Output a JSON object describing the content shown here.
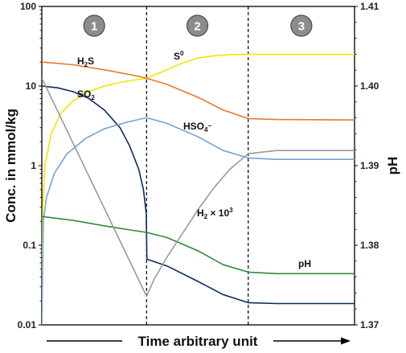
{
  "chart_data": {
    "type": "line",
    "xlabel": "Time arbitrary unit",
    "ylabel": "Conc. in mmol/kg",
    "y2label": "pH",
    "x_range": [
      0,
      1
    ],
    "y_scale": "log",
    "ylim": [
      0.01,
      100
    ],
    "y_ticks": [
      "0.01",
      "0.1",
      "1",
      "10",
      "100"
    ],
    "y2lim": [
      1.37,
      1.41
    ],
    "y2_ticks": [
      "1.37",
      "1.38",
      "1.39",
      "1.40",
      "1.41"
    ],
    "stage_dividers": [
      0.335,
      0.66
    ],
    "stages": [
      "1",
      "2",
      "3"
    ],
    "series": [
      {
        "label": "S",
        "label_sup": "0",
        "color": "#f2e600",
        "axis": "left",
        "points": [
          [
            0,
            0.01
          ],
          [
            0.003,
            0.3
          ],
          [
            0.01,
            1.0
          ],
          [
            0.03,
            2.5
          ],
          [
            0.06,
            4.5
          ],
          [
            0.1,
            6.5
          ],
          [
            0.15,
            8.5
          ],
          [
            0.2,
            10.0
          ],
          [
            0.27,
            11.5
          ],
          [
            0.335,
            12.5
          ],
          [
            0.4,
            16
          ],
          [
            0.45,
            19.5
          ],
          [
            0.5,
            22.5
          ],
          [
            0.55,
            24.0
          ],
          [
            0.6,
            24.8
          ],
          [
            0.66,
            25.0
          ],
          [
            1,
            25.0
          ]
        ]
      },
      {
        "label": "H",
        "label_sub": "2",
        "label_end": "S",
        "color": "#e8772e",
        "axis": "left",
        "points": [
          [
            0,
            20
          ],
          [
            0.1,
            18.5
          ],
          [
            0.2,
            16.0
          ],
          [
            0.3,
            13.5
          ],
          [
            0.335,
            12.5
          ],
          [
            0.4,
            10.5
          ],
          [
            0.5,
            7.2
          ],
          [
            0.58,
            5.0
          ],
          [
            0.66,
            3.9
          ],
          [
            0.75,
            3.8
          ],
          [
            1,
            3.75
          ]
        ]
      },
      {
        "label": "SO",
        "label_sub": "2",
        "color": "#0d2a5c",
        "axis": "left",
        "points": [
          [
            0,
            10
          ],
          [
            0.05,
            9.5
          ],
          [
            0.1,
            8.5
          ],
          [
            0.15,
            7.0
          ],
          [
            0.2,
            5.0
          ],
          [
            0.25,
            3.0
          ],
          [
            0.28,
            1.8
          ],
          [
            0.31,
            0.9
          ],
          [
            0.325,
            0.5
          ],
          [
            0.334,
            0.25
          ],
          [
            0.336,
            0.067
          ],
          [
            0.4,
            0.055
          ],
          [
            0.5,
            0.035
          ],
          [
            0.58,
            0.024
          ],
          [
            0.66,
            0.019
          ],
          [
            0.75,
            0.0185
          ],
          [
            1,
            0.0185
          ]
        ]
      },
      {
        "label": "HSO",
        "label_sub": "4",
        "label_sup": "−",
        "color": "#6fa4d8",
        "axis": "left",
        "points": [
          [
            0,
            0.01
          ],
          [
            0.005,
            0.2
          ],
          [
            0.015,
            0.4
          ],
          [
            0.04,
            0.8
          ],
          [
            0.08,
            1.4
          ],
          [
            0.14,
            2.2
          ],
          [
            0.2,
            2.9
          ],
          [
            0.27,
            3.5
          ],
          [
            0.335,
            4.0
          ],
          [
            0.4,
            3.4
          ],
          [
            0.5,
            2.3
          ],
          [
            0.58,
            1.55
          ],
          [
            0.66,
            1.25
          ],
          [
            0.75,
            1.2
          ],
          [
            1,
            1.2
          ]
        ]
      },
      {
        "label": "H",
        "label_sub": "2",
        "label_end": " × 10",
        "label_sup": "3",
        "color": "#2e8b3e",
        "axis": "left",
        "points": [
          [
            0,
            0.23
          ],
          [
            0.1,
            0.205
          ],
          [
            0.2,
            0.175
          ],
          [
            0.3,
            0.152
          ],
          [
            0.335,
            0.145
          ],
          [
            0.4,
            0.125
          ],
          [
            0.5,
            0.085
          ],
          [
            0.58,
            0.057
          ],
          [
            0.66,
            0.046
          ],
          [
            0.75,
            0.044
          ],
          [
            1,
            0.044
          ]
        ]
      },
      {
        "label": "pH",
        "color": "#9a9a9a",
        "axis": "right",
        "points": [
          [
            0,
            1.401
          ],
          [
            0.335,
            1.3736
          ],
          [
            0.36,
            1.3758
          ],
          [
            0.4,
            1.3785
          ],
          [
            0.45,
            1.3815
          ],
          [
            0.5,
            1.3845
          ],
          [
            0.55,
            1.3872
          ],
          [
            0.6,
            1.3895
          ],
          [
            0.66,
            1.3915
          ],
          [
            0.75,
            1.3919
          ],
          [
            1,
            1.3919
          ]
        ]
      }
    ]
  }
}
